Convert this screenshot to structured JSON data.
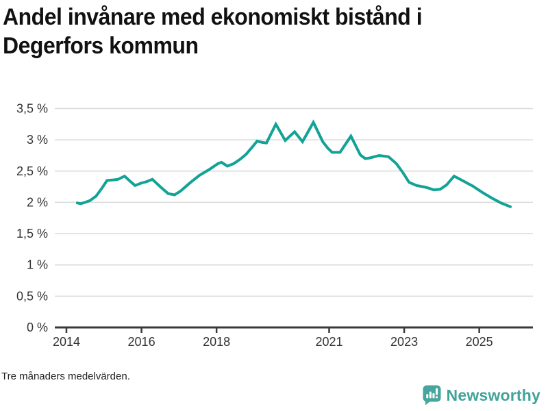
{
  "page": {
    "title_lines": [
      "Andel invånare med ekonomiskt bistånd i",
      "Degerfors kommun"
    ],
    "footnote": "Tre månaders medelvärden.",
    "brand": {
      "name": "Newsworthy",
      "icon": "newsworthy-bubble-barchart-icon",
      "color": "#46a59d"
    }
  },
  "chart_data": {
    "type": "line",
    "title": "Andel invånare med ekonomiskt bistånd i Degerfors kommun",
    "xlabel": "",
    "ylabel": "",
    "unit": "percent",
    "grid": "horizontal",
    "legend": "none",
    "line_color": "#12a296",
    "axis_color": "#3a3a3a",
    "grid_color": "#d9d9d9",
    "xlim": [
      2013.69,
      2026.43
    ],
    "ylim": [
      0,
      3.5
    ],
    "yticks": [
      {
        "value": 0,
        "label": "0 %"
      },
      {
        "value": 0.5,
        "label": "0,5 %"
      },
      {
        "value": 1,
        "label": "1 %"
      },
      {
        "value": 1.5,
        "label": "1,5 %"
      },
      {
        "value": 2,
        "label": "2 %"
      },
      {
        "value": 2.5,
        "label": "2,5 %"
      },
      {
        "value": 3,
        "label": "3 %"
      },
      {
        "value": 3.5,
        "label": "3,5 %"
      }
    ],
    "xticks": [
      {
        "value": 2014,
        "label": "2014"
      },
      {
        "value": 2016,
        "label": "2016"
      },
      {
        "value": 2018,
        "label": "2018"
      },
      {
        "value": 2021,
        "label": "2021"
      },
      {
        "value": 2023,
        "label": "2023"
      },
      {
        "value": 2025,
        "label": "2025"
      }
    ],
    "series": [
      {
        "name": "Andel invånare med ekonomiskt bistånd",
        "points": [
          [
            2014.29,
            1.99
          ],
          [
            2014.38,
            1.98
          ],
          [
            2014.5,
            2.0
          ],
          [
            2014.63,
            2.03
          ],
          [
            2014.79,
            2.1
          ],
          [
            2014.96,
            2.24
          ],
          [
            2015.08,
            2.35
          ],
          [
            2015.25,
            2.36
          ],
          [
            2015.38,
            2.37
          ],
          [
            2015.55,
            2.42
          ],
          [
            2015.71,
            2.33
          ],
          [
            2015.83,
            2.27
          ],
          [
            2016.0,
            2.31
          ],
          [
            2016.13,
            2.33
          ],
          [
            2016.29,
            2.37
          ],
          [
            2016.5,
            2.25
          ],
          [
            2016.71,
            2.14
          ],
          [
            2016.88,
            2.12
          ],
          [
            2017.04,
            2.18
          ],
          [
            2017.29,
            2.31
          ],
          [
            2017.54,
            2.43
          ],
          [
            2017.79,
            2.52
          ],
          [
            2018.04,
            2.62
          ],
          [
            2018.13,
            2.64
          ],
          [
            2018.29,
            2.58
          ],
          [
            2018.46,
            2.62
          ],
          [
            2018.63,
            2.69
          ],
          [
            2018.79,
            2.77
          ],
          [
            2018.96,
            2.89
          ],
          [
            2019.08,
            2.98
          ],
          [
            2019.21,
            2.96
          ],
          [
            2019.33,
            2.95
          ],
          [
            2019.58,
            3.25
          ],
          [
            2019.83,
            2.99
          ],
          [
            2020.08,
            3.13
          ],
          [
            2020.29,
            2.97
          ],
          [
            2020.58,
            3.28
          ],
          [
            2020.83,
            2.97
          ],
          [
            2020.96,
            2.87
          ],
          [
            2021.08,
            2.8
          ],
          [
            2021.29,
            2.8
          ],
          [
            2021.58,
            3.06
          ],
          [
            2021.83,
            2.76
          ],
          [
            2021.96,
            2.7
          ],
          [
            2022.08,
            2.71
          ],
          [
            2022.33,
            2.75
          ],
          [
            2022.58,
            2.73
          ],
          [
            2022.79,
            2.62
          ],
          [
            2022.96,
            2.48
          ],
          [
            2023.13,
            2.32
          ],
          [
            2023.33,
            2.27
          ],
          [
            2023.58,
            2.24
          ],
          [
            2023.79,
            2.2
          ],
          [
            2023.96,
            2.21
          ],
          [
            2024.13,
            2.28
          ],
          [
            2024.33,
            2.42
          ],
          [
            2024.58,
            2.34
          ],
          [
            2024.83,
            2.26
          ],
          [
            2025.08,
            2.16
          ],
          [
            2025.33,
            2.07
          ],
          [
            2025.58,
            1.99
          ],
          [
            2025.83,
            1.93
          ]
        ]
      }
    ],
    "note": "Tre månaders medelvärden."
  }
}
